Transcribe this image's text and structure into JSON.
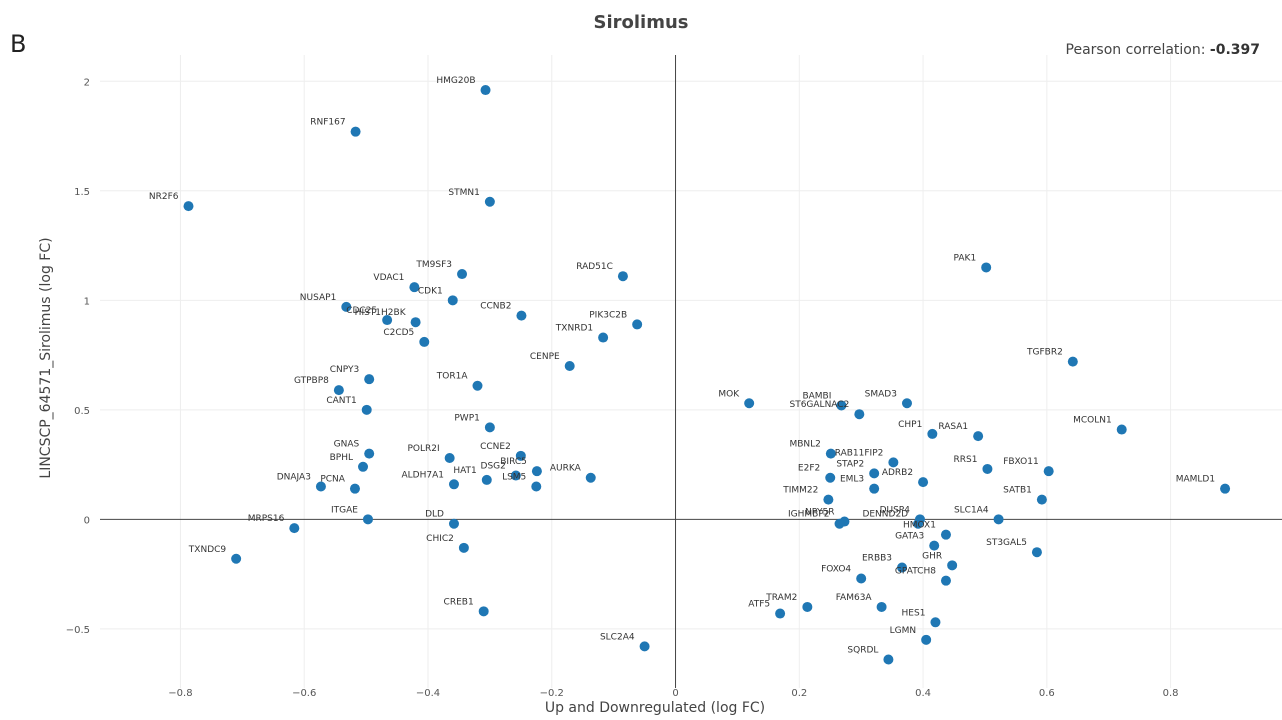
{
  "panel_letter": "B",
  "correlation": {
    "label": "Pearson correlation:",
    "value": "-0.397"
  },
  "chart_data": {
    "type": "scatter",
    "title": "Sirolimus",
    "xlabel": "Up and Downregulated (log FC)",
    "ylabel": "LINCSCP_64571_Sirolimus (log FC)",
    "xlim": [
      -0.93,
      0.98
    ],
    "ylim": [
      -0.77,
      2.12
    ],
    "x_ticks": [
      -0.8,
      -0.6,
      -0.4,
      -0.2,
      0,
      0.2,
      0.4,
      0.6,
      0.8
    ],
    "x_tick_labels": [
      "−0.8",
      "−0.6",
      "−0.4",
      "−0.2",
      "0",
      "0.2",
      "0.4",
      "0.6",
      "0.8"
    ],
    "y_ticks": [
      -0.5,
      0,
      0.5,
      1,
      1.5,
      2
    ],
    "y_tick_labels": [
      "−0.5",
      "0",
      "0.5",
      "1",
      "1.5",
      "2"
    ],
    "grid": true,
    "point_color": "#1f77b4",
    "points": [
      {
        "label": "HMG20B",
        "x": -0.307,
        "y": 1.96
      },
      {
        "label": "RNF167",
        "x": -0.517,
        "y": 1.77
      },
      {
        "label": "NR2F6",
        "x": -0.787,
        "y": 1.43
      },
      {
        "label": "STMN1",
        "x": -0.3,
        "y": 1.45
      },
      {
        "label": "TM9SF3",
        "x": -0.345,
        "y": 1.12
      },
      {
        "label": "VDAC1",
        "x": -0.422,
        "y": 1.06
      },
      {
        "label": "CDK1",
        "x": -0.36,
        "y": 1.0
      },
      {
        "label": "NUSAP1",
        "x": -0.532,
        "y": 0.97
      },
      {
        "label": "CDC25",
        "x": -0.466,
        "y": 0.91
      },
      {
        "label": "HIST1H2BK",
        "x": -0.42,
        "y": 0.9
      },
      {
        "label": "C2CD5",
        "x": -0.406,
        "y": 0.81
      },
      {
        "label": "CCNB2",
        "x": -0.249,
        "y": 0.93
      },
      {
        "label": "RAD51C",
        "x": -0.085,
        "y": 1.11
      },
      {
        "label": "PIK3C2B",
        "x": -0.062,
        "y": 0.89
      },
      {
        "label": "TXNRD1",
        "x": -0.117,
        "y": 0.83
      },
      {
        "label": "CENPE",
        "x": -0.171,
        "y": 0.7
      },
      {
        "label": "CNPY3",
        "x": -0.495,
        "y": 0.64
      },
      {
        "label": "GTPBP8",
        "x": -0.544,
        "y": 0.59
      },
      {
        "label": "CANT1",
        "x": -0.499,
        "y": 0.5
      },
      {
        "label": "TOR1A",
        "x": -0.32,
        "y": 0.61
      },
      {
        "label": "PWP1",
        "x": -0.3,
        "y": 0.42
      },
      {
        "label": "CCNE2",
        "x": -0.25,
        "y": 0.29
      },
      {
        "label": "GNAS",
        "x": -0.495,
        "y": 0.3
      },
      {
        "label": "BPHL",
        "x": -0.505,
        "y": 0.24
      },
      {
        "label": "POLR2I",
        "x": -0.365,
        "y": 0.28
      },
      {
        "label": "BIRC5",
        "x": -0.224,
        "y": 0.22
      },
      {
        "label": "HAT1",
        "x": -0.305,
        "y": 0.18
      },
      {
        "label": "DSG2",
        "x": -0.258,
        "y": 0.2
      },
      {
        "label": "AURKA",
        "x": -0.137,
        "y": 0.19
      },
      {
        "label": "LSM5",
        "x": -0.225,
        "y": 0.15
      },
      {
        "label": "ALDH7A1",
        "x": -0.358,
        "y": 0.16
      },
      {
        "label": "DNAJA3",
        "x": -0.573,
        "y": 0.15
      },
      {
        "label": "PCNA",
        "x": -0.518,
        "y": 0.14
      },
      {
        "label": "ITGAE",
        "x": -0.497,
        "y": 0.0
      },
      {
        "label": "DLD",
        "x": -0.358,
        "y": -0.02
      },
      {
        "label": "MRPS16",
        "x": -0.616,
        "y": -0.04
      },
      {
        "label": "CHIC2",
        "x": -0.342,
        "y": -0.13
      },
      {
        "label": "TXNDC9",
        "x": -0.71,
        "y": -0.18
      },
      {
        "label": "CREB1",
        "x": -0.31,
        "y": -0.42
      },
      {
        "label": "SLC2A4",
        "x": -0.05,
        "y": -0.58
      },
      {
        "label": "PAK1",
        "x": 0.502,
        "y": 1.15
      },
      {
        "label": "TGFBR2",
        "x": 0.642,
        "y": 0.72
      },
      {
        "label": "MOK",
        "x": 0.119,
        "y": 0.53
      },
      {
        "label": "BAMBI",
        "x": 0.268,
        "y": 0.52
      },
      {
        "label": "ST6GALNAC2",
        "x": 0.297,
        "y": 0.48
      },
      {
        "label": "SMAD3",
        "x": 0.374,
        "y": 0.53
      },
      {
        "label": "MCOLN1",
        "x": 0.721,
        "y": 0.41
      },
      {
        "label": "CHP1",
        "x": 0.415,
        "y": 0.39
      },
      {
        "label": "RASA1",
        "x": 0.489,
        "y": 0.38
      },
      {
        "label": "MBNL2",
        "x": 0.251,
        "y": 0.3
      },
      {
        "label": "RAB11FIP2",
        "x": 0.352,
        "y": 0.26
      },
      {
        "label": "STAP2",
        "x": 0.321,
        "y": 0.21
      },
      {
        "label": "E2F2",
        "x": 0.25,
        "y": 0.19
      },
      {
        "label": "EML3",
        "x": 0.321,
        "y": 0.14
      },
      {
        "label": "ADRB2",
        "x": 0.4,
        "y": 0.17
      },
      {
        "label": "RRS1",
        "x": 0.504,
        "y": 0.23
      },
      {
        "label": "FBXO11",
        "x": 0.603,
        "y": 0.22
      },
      {
        "label": "MAMLD1",
        "x": 0.888,
        "y": 0.14
      },
      {
        "label": "SATB1",
        "x": 0.592,
        "y": 0.09
      },
      {
        "label": "TIMM22",
        "x": 0.247,
        "y": 0.09
      },
      {
        "label": "DUSP4",
        "x": 0.395,
        "y": 0.0
      },
      {
        "label": "NPY5R",
        "x": 0.273,
        "y": -0.01
      },
      {
        "label": "IGHMBP2",
        "x": 0.265,
        "y": -0.02
      },
      {
        "label": "DENND2D",
        "x": 0.392,
        "y": -0.02
      },
      {
        "label": "SLC1A4",
        "x": 0.522,
        "y": 0.0
      },
      {
        "label": "HMOX1",
        "x": 0.437,
        "y": -0.07
      },
      {
        "label": "ST3GAL5",
        "x": 0.584,
        "y": -0.15
      },
      {
        "label": "GATA3",
        "x": 0.418,
        "y": -0.12
      },
      {
        "label": "ERBB3",
        "x": 0.366,
        "y": -0.22
      },
      {
        "label": "GHR",
        "x": 0.447,
        "y": -0.21
      },
      {
        "label": "FOXO4",
        "x": 0.3,
        "y": -0.27
      },
      {
        "label": "GPATCH8",
        "x": 0.437,
        "y": -0.28
      },
      {
        "label": "FAM63A",
        "x": 0.333,
        "y": -0.4
      },
      {
        "label": "TRAM2",
        "x": 0.213,
        "y": -0.4
      },
      {
        "label": "ATF5",
        "x": 0.169,
        "y": -0.43
      },
      {
        "label": "HES1",
        "x": 0.42,
        "y": -0.47
      },
      {
        "label": "LGMN",
        "x": 0.405,
        "y": -0.55
      },
      {
        "label": "SQRDL",
        "x": 0.344,
        "y": -0.64
      }
    ]
  }
}
